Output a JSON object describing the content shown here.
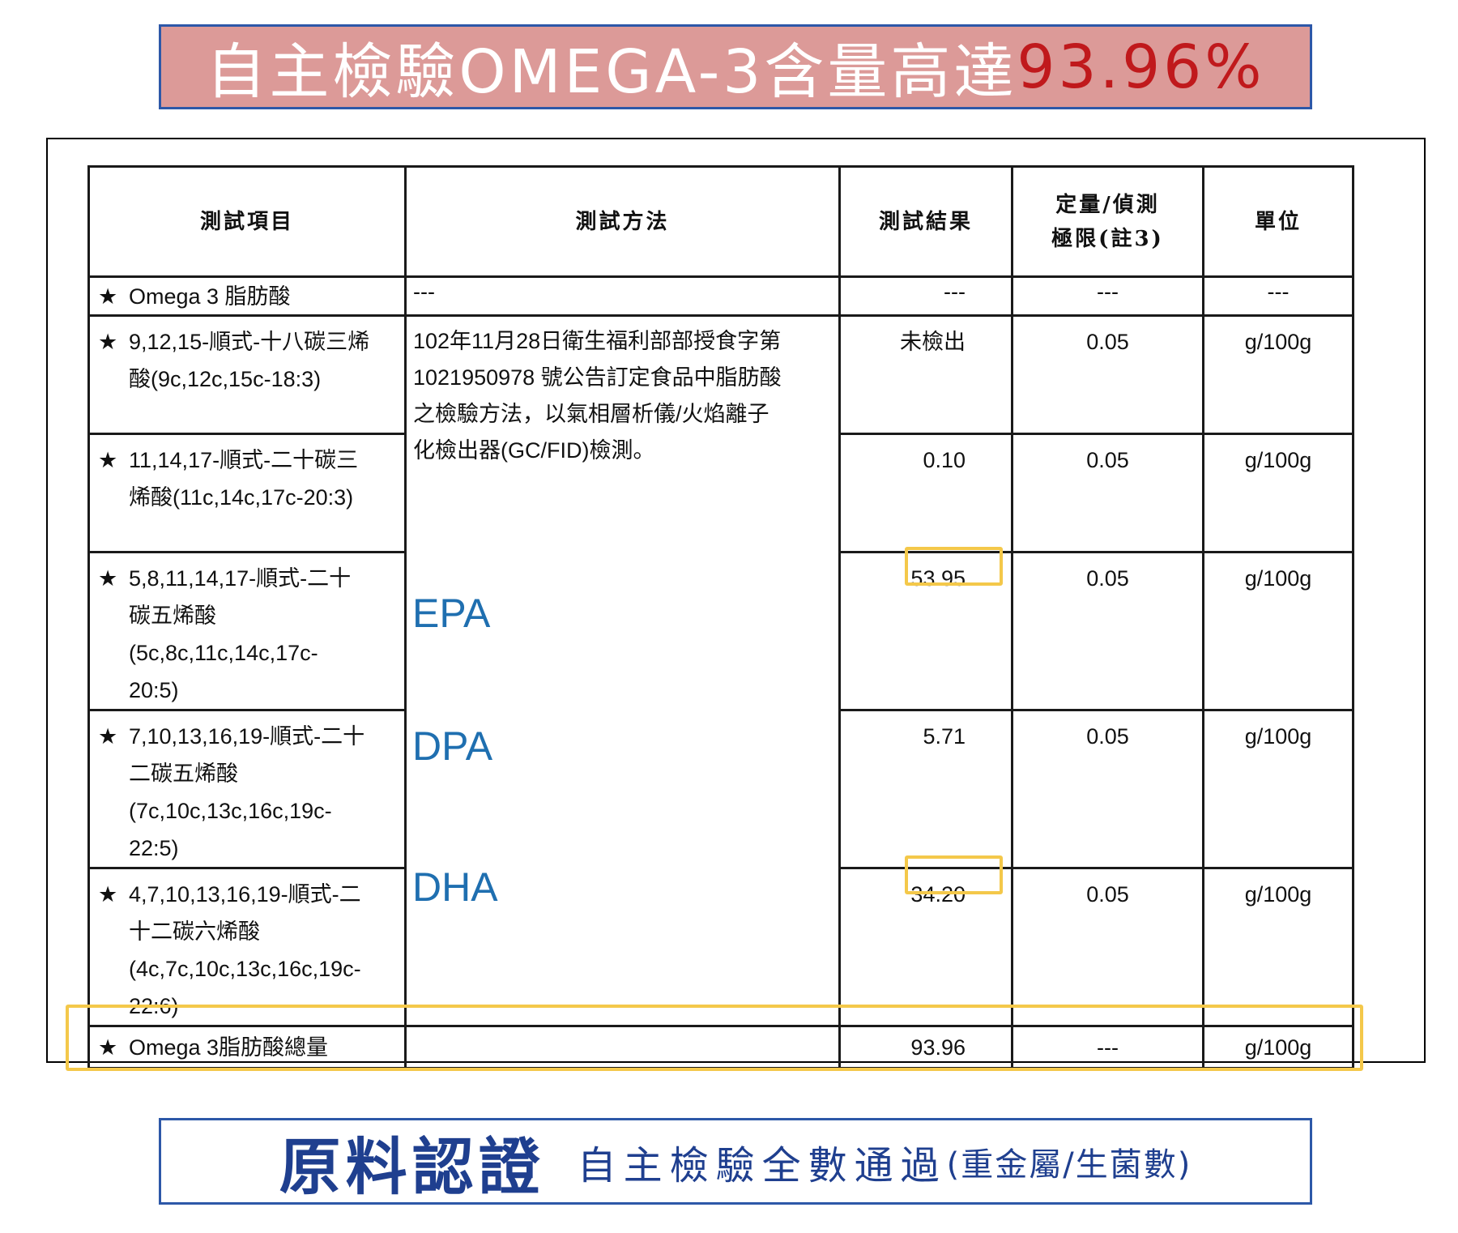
{
  "top_banner": {
    "text": "自主檢驗OMEGA-3含量高達",
    "highlight": "93.96%"
  },
  "headers": {
    "item": "測試項目",
    "method": "測試方法",
    "result": "測試結果",
    "loq_line1": "定量/偵測",
    "loq_line2": "極限(註3)",
    "unit": "單位"
  },
  "rows": [
    {
      "star": "★",
      "item_lines": [
        "Omega 3 脂肪酸"
      ],
      "method": "---",
      "result": "---",
      "loq": "---",
      "unit": "---"
    },
    {
      "star": "★",
      "item_lines": [
        "9,12,15-順式-十八碳三烯",
        "酸(9c,12c,15c-18:3)"
      ],
      "result": "未檢出",
      "loq": "0.05",
      "unit": "g/100g"
    },
    {
      "star": "★",
      "item_lines": [
        "11,14,17-順式-二十碳三",
        "烯酸(11c,14c,17c-20:3)"
      ],
      "result": "0.10",
      "loq": "0.05",
      "unit": "g/100g"
    },
    {
      "star": "★",
      "item_lines": [
        "5,8,11,14,17-順式-二十",
        "碳五烯酸",
        "(5c,8c,11c,14c,17c-",
        "20:5)"
      ],
      "result": "53.95",
      "loq": "0.05",
      "unit": "g/100g"
    },
    {
      "star": "★",
      "item_lines": [
        "7,10,13,16,19-順式-二十",
        "二碳五烯酸",
        "(7c,10c,13c,16c,19c-",
        "22:5)"
      ],
      "result": "5.71",
      "loq": "0.05",
      "unit": "g/100g"
    },
    {
      "star": "★",
      "item_lines": [
        "4,7,10,13,16,19-順式-二",
        "十二碳六烯酸",
        "(4c,7c,10c,13c,16c,19c-",
        "22:6)"
      ],
      "result": "34.20",
      "loq": "0.05",
      "unit": "g/100g"
    },
    {
      "star": "★",
      "item_lines": [
        "Omega 3脂肪酸總量"
      ],
      "method": "",
      "result": "93.96",
      "loq": "---",
      "unit": "g/100g"
    }
  ],
  "method_text": {
    "lines": [
      "102年11月28日衛生福利部部授食字第",
      "1021950978 號公告訂定食品中脂肪酸",
      "之檢驗方法，以氣相層析儀/火焰離子",
      "化檢出器(GC/FID)檢測。"
    ]
  },
  "annotations": {
    "epa": "EPA",
    "dpa": "DPA",
    "dha": "DHA"
  },
  "colors": {
    "banner_bg": "#dc9a98",
    "banner_highlight": "#c0191c",
    "banner_border": "#2d58a8",
    "annotation": "#1f6fb0",
    "highlight_box": "#f4c84a"
  },
  "bottom_banner": {
    "title": "原料認證",
    "subtitle": "自主檢驗全數通過",
    "note": "(重金屬/生菌數)"
  }
}
